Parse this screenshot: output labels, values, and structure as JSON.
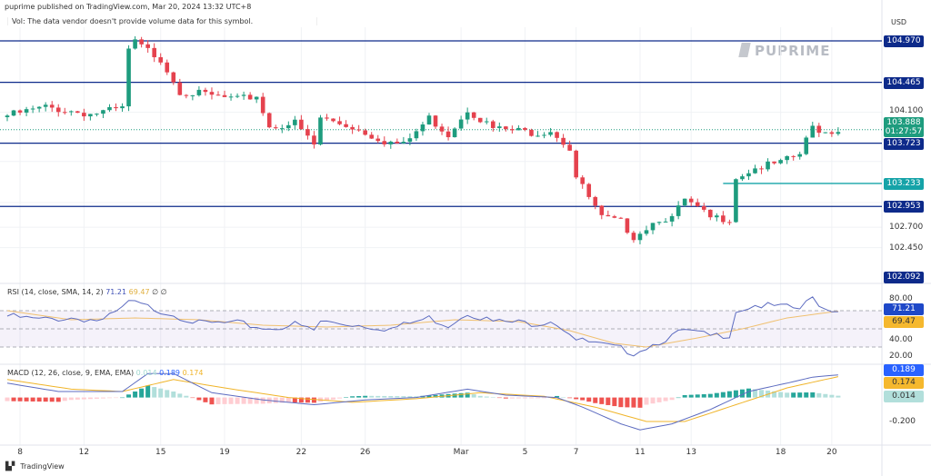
{
  "header": {
    "published": "puprime published on TradingView.com, Mar 20, 2024 13:32 UTC+8",
    "vol_note": "Vol: The data vendor doesn't provide volume data for this symbol."
  },
  "axis": {
    "currency": "USD",
    "price_ticks": [
      "104.100",
      "102.700",
      "102.450"
    ],
    "rsi_ticks": [
      "80.00",
      "40.00",
      "20.00"
    ],
    "macd_ticks": [
      "-0.200"
    ],
    "x_ticks": [
      {
        "label": "8",
        "i": 2
      },
      {
        "label": "12",
        "i": 12
      },
      {
        "label": "15",
        "i": 24
      },
      {
        "label": "19",
        "i": 34
      },
      {
        "label": "22",
        "i": 46
      },
      {
        "label": "26",
        "i": 56
      },
      {
        "label": "Mar",
        "i": 71
      },
      {
        "label": "5",
        "i": 81
      },
      {
        "label": "7",
        "i": 89
      },
      {
        "label": "11",
        "i": 99
      },
      {
        "label": "13",
        "i": 107
      },
      {
        "label": "18",
        "i": 121
      },
      {
        "label": "20",
        "i": 129
      }
    ]
  },
  "levels": [
    {
      "value": "104.970",
      "color": "#0d2a8a"
    },
    {
      "value": "104.465",
      "color": "#0d2a8a"
    },
    {
      "value": "103.723",
      "color": "#0d2a8a"
    },
    {
      "value": "102.953",
      "color": "#0d2a8a"
    },
    {
      "value": "103.233",
      "color": "#15a3a8",
      "from_index": 112
    },
    {
      "value": "102.092",
      "color": "#0d2a8a",
      "label_only": true
    }
  ],
  "current": {
    "price": "103.888",
    "countdown": "01:27:57",
    "color": "#1e9c7e"
  },
  "watermark": "PUPRIME",
  "rsi": {
    "title": "RSI (14, close, SMA, 14, 2)",
    "value": "71.21",
    "sma": "69.47",
    "extra1": "∅",
    "extra2": "∅"
  },
  "macd": {
    "title": "MACD (12, 26, close, 9, EMA, EMA)",
    "hist": "0.014",
    "macd": "0.189",
    "signal": "0.174"
  },
  "footer": {
    "brand": "TradingView"
  },
  "chart_data": {
    "type": "candlestick",
    "symbol_currency": "USD",
    "ylim": [
      102.092,
      104.97
    ],
    "close_keypoints": [
      [
        0,
        104.06
      ],
      [
        6,
        104.16
      ],
      [
        13,
        104.08
      ],
      [
        18,
        104.14
      ],
      [
        19,
        104.86
      ],
      [
        20,
        104.95
      ],
      [
        24,
        104.75
      ],
      [
        27,
        104.36
      ],
      [
        32,
        104.3
      ],
      [
        36,
        104.25
      ],
      [
        39,
        104.3
      ],
      [
        41,
        103.92
      ],
      [
        45,
        103.97
      ],
      [
        48,
        103.7
      ],
      [
        49,
        104.03
      ],
      [
        54,
        103.92
      ],
      [
        59,
        103.75
      ],
      [
        62,
        103.7
      ],
      [
        66,
        104.03
      ],
      [
        69,
        103.83
      ],
      [
        72,
        104.14
      ],
      [
        76,
        103.9
      ],
      [
        83,
        103.85
      ],
      [
        85,
        103.89
      ],
      [
        88,
        103.66
      ],
      [
        89,
        103.31
      ],
      [
        93,
        102.81
      ],
      [
        96,
        102.76
      ],
      [
        98,
        102.59
      ],
      [
        102,
        102.81
      ],
      [
        104,
        102.81
      ],
      [
        106,
        103.03
      ],
      [
        110,
        102.81
      ],
      [
        113,
        102.81
      ],
      [
        114,
        103.31
      ],
      [
        117,
        103.42
      ],
      [
        121,
        103.48
      ],
      [
        124,
        103.59
      ],
      [
        126,
        103.92
      ],
      [
        128,
        103.86
      ],
      [
        130,
        103.888
      ]
    ],
    "rsi_keypoints": [
      [
        0,
        64
      ],
      [
        5,
        60
      ],
      [
        10,
        62
      ],
      [
        15,
        59
      ],
      [
        18,
        72
      ],
      [
        19,
        80
      ],
      [
        22,
        74
      ],
      [
        26,
        66
      ],
      [
        30,
        56
      ],
      [
        36,
        56
      ],
      [
        41,
        50
      ],
      [
        45,
        55
      ],
      [
        48,
        48
      ],
      [
        49,
        58
      ],
      [
        54,
        55
      ],
      [
        60,
        50
      ],
      [
        66,
        62
      ],
      [
        69,
        54
      ],
      [
        72,
        68
      ],
      [
        76,
        58
      ],
      [
        83,
        56
      ],
      [
        85,
        60
      ],
      [
        88,
        46
      ],
      [
        89,
        38
      ],
      [
        93,
        32
      ],
      [
        96,
        28
      ],
      [
        98,
        24
      ],
      [
        102,
        36
      ],
      [
        106,
        48
      ],
      [
        110,
        42
      ],
      [
        113,
        44
      ],
      [
        114,
        70
      ],
      [
        117,
        76
      ],
      [
        121,
        74
      ],
      [
        124,
        72
      ],
      [
        126,
        84
      ],
      [
        128,
        72
      ],
      [
        130,
        71.21
      ]
    ],
    "rsi_sma_keypoints": [
      [
        0,
        70
      ],
      [
        10,
        60
      ],
      [
        20,
        62
      ],
      [
        30,
        60
      ],
      [
        40,
        54
      ],
      [
        50,
        52
      ],
      [
        60,
        54
      ],
      [
        70,
        60
      ],
      [
        80,
        58
      ],
      [
        88,
        48
      ],
      [
        95,
        34
      ],
      [
        100,
        30
      ],
      [
        108,
        40
      ],
      [
        115,
        50
      ],
      [
        122,
        62
      ],
      [
        130,
        69.47
      ]
    ],
    "macd_keypoints": [
      [
        0,
        0.12
      ],
      [
        8,
        0.05
      ],
      [
        18,
        0.05
      ],
      [
        22,
        0.2
      ],
      [
        26,
        0.2
      ],
      [
        32,
        0.04
      ],
      [
        40,
        -0.02
      ],
      [
        48,
        -0.06
      ],
      [
        56,
        -0.02
      ],
      [
        64,
        0.0
      ],
      [
        72,
        0.07
      ],
      [
        78,
        0.02
      ],
      [
        86,
        0.0
      ],
      [
        90,
        -0.08
      ],
      [
        96,
        -0.22
      ],
      [
        99,
        -0.27
      ],
      [
        104,
        -0.22
      ],
      [
        110,
        -0.1
      ],
      [
        116,
        0.05
      ],
      [
        122,
        0.12
      ],
      [
        126,
        0.17
      ],
      [
        130,
        0.189
      ]
    ],
    "signal_keypoints": [
      [
        0,
        0.15
      ],
      [
        10,
        0.07
      ],
      [
        18,
        0.05
      ],
      [
        26,
        0.15
      ],
      [
        34,
        0.08
      ],
      [
        44,
        0.0
      ],
      [
        54,
        -0.04
      ],
      [
        64,
        -0.01
      ],
      [
        74,
        0.04
      ],
      [
        84,
        0.01
      ],
      [
        92,
        -0.08
      ],
      [
        100,
        -0.2
      ],
      [
        106,
        -0.2
      ],
      [
        114,
        -0.06
      ],
      [
        122,
        0.08
      ],
      [
        130,
        0.174
      ]
    ]
  }
}
